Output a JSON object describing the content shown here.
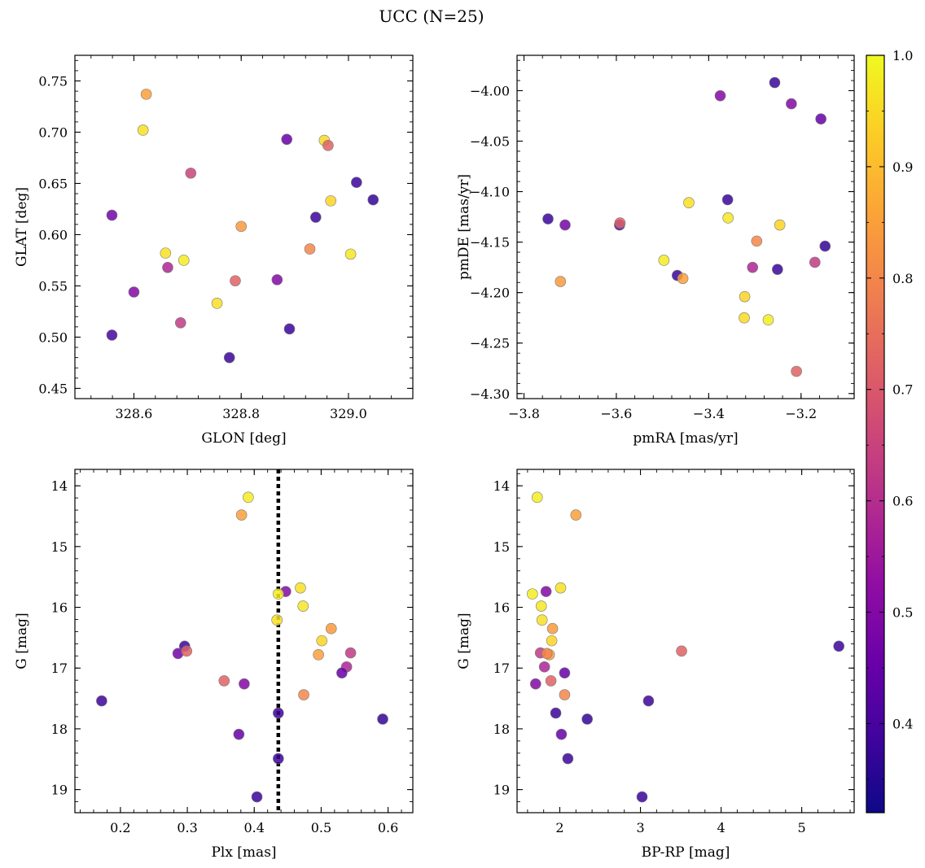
{
  "figure": {
    "title": "UCC (N=25)",
    "colorbar": {
      "colormap": "plasma",
      "range": [
        0.32,
        1.0
      ],
      "ticks": [
        0.4,
        0.5,
        0.6,
        0.7,
        0.8,
        0.9,
        1.0
      ],
      "tick_labels": [
        "0.4",
        "0.5",
        "0.6",
        "0.7",
        "0.8",
        "0.9",
        "1.0"
      ]
    }
  },
  "chart_data": [
    {
      "type": "scatter",
      "xlabel": "GLON [deg]",
      "ylabel": "GLAT [deg]",
      "xlim": [
        328.49,
        329.12
      ],
      "ylim": [
        0.44,
        0.775
      ],
      "inverted_y": false,
      "xticks": [
        328.6,
        328.8,
        329.0
      ],
      "xtick_labels": [
        "328.6",
        "328.8",
        "329.0"
      ],
      "yticks": [
        0.45,
        0.5,
        0.55,
        0.6,
        0.65,
        0.7,
        0.75
      ],
      "ytick_labels": [
        "0.45",
        "0.50",
        "0.55",
        "0.60",
        "0.65",
        "0.70",
        "0.75"
      ],
      "x": [
        328.623,
        328.617,
        328.706,
        328.885,
        328.955,
        328.962,
        329.015,
        329.046,
        328.939,
        328.967,
        328.559,
        328.8,
        328.659,
        328.693,
        328.663,
        328.928,
        329.004,
        328.6,
        328.789,
        328.867,
        328.755,
        328.559,
        328.687,
        328.89,
        328.778
      ],
      "y": [
        0.737,
        0.702,
        0.66,
        0.693,
        0.692,
        0.687,
        0.651,
        0.634,
        0.617,
        0.633,
        0.619,
        0.608,
        0.582,
        0.575,
        0.568,
        0.586,
        0.581,
        0.544,
        0.555,
        0.556,
        0.533,
        0.502,
        0.514,
        0.508,
        0.48
      ],
      "c": [
        0.85,
        0.96,
        0.65,
        0.45,
        0.95,
        0.72,
        0.38,
        0.37,
        0.38,
        0.94,
        0.47,
        0.84,
        0.96,
        0.98,
        0.58,
        0.8,
        0.97,
        0.5,
        0.72,
        0.5,
        0.96,
        0.4,
        0.63,
        0.38,
        0.38
      ]
    },
    {
      "type": "scatter",
      "xlabel": "pmRA [mas/yr]",
      "ylabel": "pmDE [mas/yr]",
      "xlim": [
        -3.815,
        -3.085
      ],
      "ylim": [
        -4.305,
        -3.965
      ],
      "inverted_y": false,
      "xticks": [
        -3.8,
        -3.6,
        -3.4,
        -3.2
      ],
      "xtick_labels": [
        "−3.8",
        "−3.6",
        "−3.4",
        "−3.2"
      ],
      "yticks": [
        -4.3,
        -4.25,
        -4.2,
        -4.15,
        -4.1,
        -4.05,
        -4.0
      ],
      "ytick_labels": [
        "−4.30",
        "−4.25",
        "−4.20",
        "−4.15",
        "−4.10",
        "−4.05",
        "−4.00"
      ],
      "x": [
        -3.257,
        -3.375,
        -3.221,
        -3.157,
        -3.359,
        -3.443,
        -3.748,
        -3.711,
        -3.593,
        -3.358,
        -3.246,
        -3.296,
        -3.148,
        -3.497,
        -3.305,
        -3.17,
        -3.721,
        -3.468,
        -3.456,
        -3.251,
        -3.322,
        -3.323,
        -3.271,
        -3.21,
        -3.592
      ],
      "y": [
        -3.992,
        -4.005,
        -4.013,
        -4.028,
        -4.108,
        -4.111,
        -4.127,
        -4.133,
        -4.133,
        -4.126,
        -4.133,
        -4.149,
        -4.154,
        -4.168,
        -4.175,
        -4.17,
        -4.189,
        -4.183,
        -4.186,
        -4.177,
        -4.204,
        -4.225,
        -4.227,
        -4.278,
        -4.131
      ],
      "c": [
        0.38,
        0.5,
        0.5,
        0.45,
        0.38,
        0.96,
        0.38,
        0.47,
        0.4,
        0.97,
        0.94,
        0.8,
        0.37,
        0.98,
        0.58,
        0.63,
        0.84,
        0.38,
        0.85,
        0.38,
        0.94,
        0.95,
        0.98,
        0.72,
        0.72
      ]
    },
    {
      "type": "scatter",
      "xlabel": "Plx [mas]",
      "ylabel": "G [mag]",
      "xlim": [
        0.132,
        0.637
      ],
      "ylim": [
        19.38,
        13.73
      ],
      "inverted_y": true,
      "xticks": [
        0.2,
        0.3,
        0.4,
        0.5,
        0.6
      ],
      "xtick_labels": [
        "0.2",
        "0.3",
        "0.4",
        "0.5",
        "0.6"
      ],
      "yticks": [
        14,
        15,
        16,
        17,
        18,
        19
      ],
      "ytick_labels": [
        "14",
        "15",
        "16",
        "17",
        "18",
        "19"
      ],
      "vline": 0.436,
      "x": [
        0.391,
        0.381,
        0.447,
        0.469,
        0.436,
        0.473,
        0.434,
        0.515,
        0.501,
        0.496,
        0.296,
        0.286,
        0.299,
        0.544,
        0.538,
        0.531,
        0.355,
        0.385,
        0.474,
        0.172,
        0.436,
        0.592,
        0.377,
        0.436,
        0.404
      ],
      "y": [
        14.19,
        14.48,
        15.74,
        15.68,
        15.78,
        15.98,
        16.21,
        16.35,
        16.55,
        16.78,
        16.64,
        16.76,
        16.72,
        16.75,
        16.98,
        17.08,
        17.21,
        17.26,
        17.44,
        17.54,
        17.74,
        17.84,
        18.09,
        18.49,
        19.12
      ],
      "c": [
        0.98,
        0.85,
        0.5,
        0.96,
        0.98,
        0.97,
        0.96,
        0.84,
        0.94,
        0.85,
        0.38,
        0.47,
        0.72,
        0.63,
        0.58,
        0.45,
        0.72,
        0.5,
        0.8,
        0.38,
        0.38,
        0.37,
        0.45,
        0.38,
        0.38
      ]
    },
    {
      "type": "scatter",
      "xlabel": "BP-RP [mag]",
      "ylabel": "G [mag]",
      "xlim": [
        1.47,
        5.65
      ],
      "ylim": [
        19.38,
        13.73
      ],
      "inverted_y": true,
      "xticks": [
        2,
        3,
        4,
        5
      ],
      "xtick_labels": [
        "2",
        "3",
        "4",
        "5"
      ],
      "yticks": [
        14,
        15,
        16,
        17,
        18,
        19
      ],
      "ytick_labels": [
        "14",
        "15",
        "16",
        "17",
        "18",
        "19"
      ],
      "x": [
        1.72,
        2.2,
        1.66,
        1.83,
        2.01,
        1.77,
        1.78,
        1.91,
        1.9,
        1.87,
        1.76,
        3.51,
        5.46,
        1.84,
        1.81,
        2.06,
        1.89,
        1.7,
        2.06,
        3.1,
        1.95,
        2.34,
        2.02,
        2.1,
        3.02
      ],
      "y": [
        14.19,
        14.48,
        15.78,
        15.74,
        15.68,
        15.98,
        16.21,
        16.35,
        16.55,
        16.78,
        16.75,
        16.72,
        16.64,
        16.76,
        16.98,
        17.08,
        17.21,
        17.26,
        17.44,
        17.54,
        17.74,
        17.84,
        18.09,
        18.49,
        19.12
      ],
      "c": [
        0.98,
        0.85,
        0.98,
        0.5,
        0.96,
        0.97,
        0.96,
        0.84,
        0.94,
        0.85,
        0.63,
        0.72,
        0.38,
        0.8,
        0.58,
        0.45,
        0.72,
        0.5,
        0.8,
        0.38,
        0.38,
        0.37,
        0.45,
        0.38,
        0.38
      ]
    }
  ]
}
